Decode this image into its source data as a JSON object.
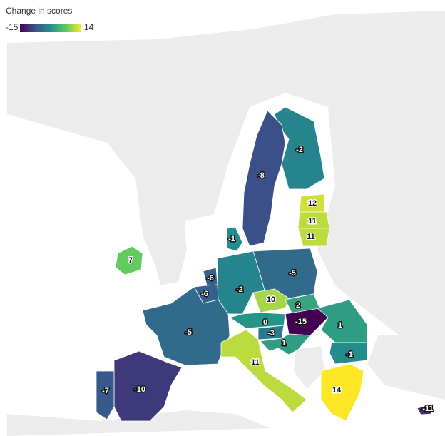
{
  "legend": {
    "title": "Change in scores",
    "min": -15,
    "max": 14,
    "colormap": [
      "#440154",
      "#3b528b",
      "#21918c",
      "#5ec962",
      "#fde725"
    ]
  },
  "regions": [
    {
      "value": -2
    },
    {
      "value": -8
    },
    {
      "value": 12
    },
    {
      "value": 11
    },
    {
      "value": 11
    },
    {
      "value": -1
    },
    {
      "value": 7
    },
    {
      "value": -6
    },
    {
      "value": -6
    },
    {
      "value": -2
    },
    {
      "value": -5
    },
    {
      "value": 10
    },
    {
      "value": 2
    },
    {
      "value": -15
    },
    {
      "value": 0
    },
    {
      "value": -3
    },
    {
      "value": 1
    },
    {
      "value": 1
    },
    {
      "value": -1
    },
    {
      "value": -5
    },
    {
      "value": 11
    },
    {
      "value": -10
    },
    {
      "value": -7
    },
    {
      "value": 14
    },
    {
      "value": -11
    }
  ]
}
